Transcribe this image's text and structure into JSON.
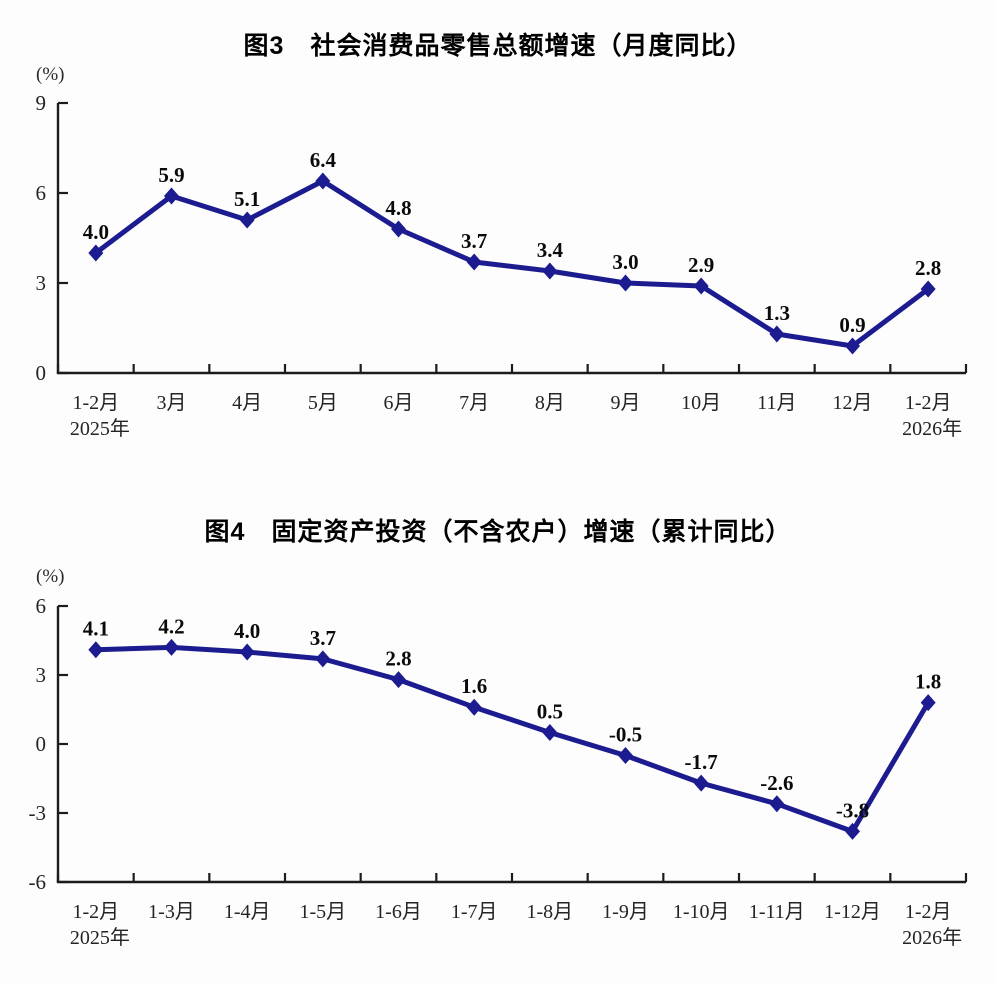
{
  "page": {
    "background": "#fdfdfd",
    "accent_color": "#1c1c90",
    "axis_color": "#1c1c1c"
  },
  "chart_data": [
    {
      "type": "line",
      "title": "图3　社会消费品零售总额增速（月度同比）",
      "unit_label": "(%)",
      "categories": [
        "1-2月",
        "3月",
        "4月",
        "5月",
        "6月",
        "7月",
        "8月",
        "9月",
        "10月",
        "11月",
        "12月",
        "1-2月"
      ],
      "category_sublabels": {
        "0": "2025年",
        "11": "2026年"
      },
      "values": [
        4.0,
        5.9,
        5.1,
        6.4,
        4.8,
        3.7,
        3.4,
        3.0,
        2.9,
        1.3,
        0.9,
        2.8
      ],
      "value_labels": [
        "4.0",
        "5.9",
        "5.1",
        "6.4",
        "4.8",
        "3.7",
        "3.4",
        "3.0",
        "2.9",
        "1.3",
        "0.9",
        "2.8"
      ],
      "ylim": [
        0,
        9
      ],
      "yticks": [
        0,
        3,
        6,
        9
      ],
      "xlabel": "",
      "ylabel": "(%)",
      "grid": false,
      "legend": "none",
      "line_color": "#1c1c90",
      "marker": "diamond"
    },
    {
      "type": "line",
      "title": "图4　固定资产投资（不含农户）增速（累计同比）",
      "unit_label": "(%)",
      "categories": [
        "1-2月",
        "1-3月",
        "1-4月",
        "1-5月",
        "1-6月",
        "1-7月",
        "1-8月",
        "1-9月",
        "1-10月",
        "1-11月",
        "1-12月",
        "1-2月"
      ],
      "category_sublabels": {
        "0": "2025年",
        "11": "2026年"
      },
      "values": [
        4.1,
        4.2,
        4.0,
        3.7,
        2.8,
        1.6,
        0.5,
        -0.5,
        -1.7,
        -2.6,
        -3.8,
        1.8
      ],
      "value_labels": [
        "4.1",
        "4.2",
        "4.0",
        "3.7",
        "2.8",
        "1.6",
        "0.5",
        "-0.5",
        "-1.7",
        "-2.6",
        "-3.8",
        "1.8"
      ],
      "ylim": [
        -6,
        6
      ],
      "yticks": [
        -6,
        -3,
        0,
        3,
        6
      ],
      "xlabel": "",
      "ylabel": "(%)",
      "grid": false,
      "legend": "none",
      "line_color": "#1c1c90",
      "marker": "diamond"
    }
  ]
}
